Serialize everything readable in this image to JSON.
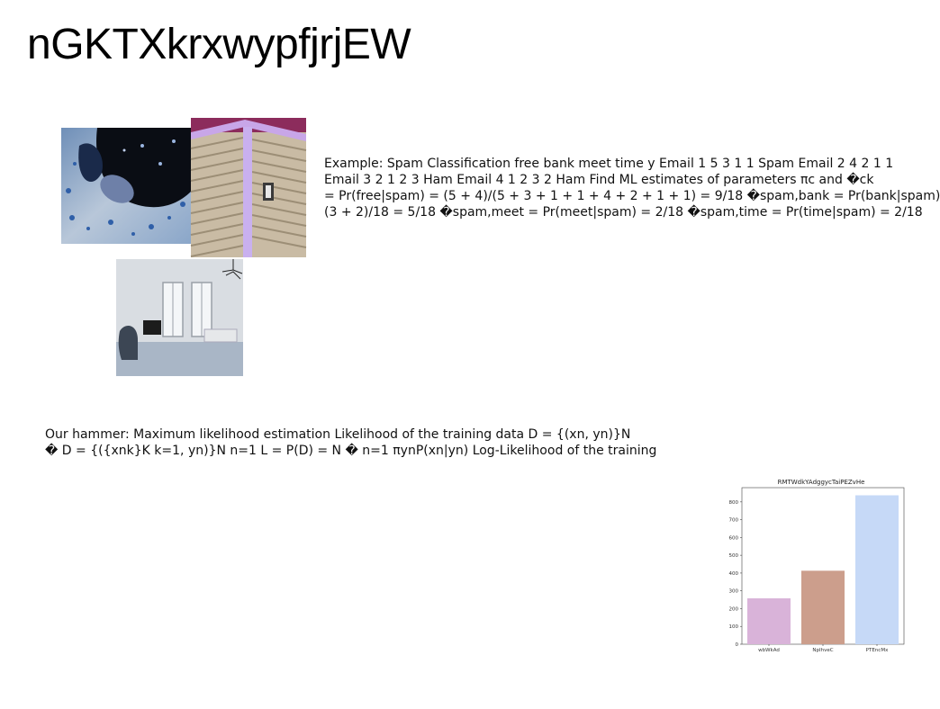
{
  "page": {
    "title": "nGKTXkrxwypfjrjEW"
  },
  "paragraphs": {
    "spam": {
      "lines": [
        "Example: Spam Classification free bank meet time y Email 1 5 3 1 1 Spam Email 2 4 2 1 1",
        "Email 3 2 1 2 3 Ham Email 4 1 2 3 2 Ham Find ML estimates of parameters πc and �ck",
        "= Pr(free|spam) = (5 + 4)/(5 + 3 + 1 + 1 + 4 + 2 + 1 + 1) = 9/18 �spam,bank = Pr(bank|spam)",
        "(3 + 2)/18 = 5/18 �spam,meet = Pr(meet|spam) = 2/18 �spam,time = Pr(time|spam) = 2/18"
      ]
    },
    "hammer": {
      "lines": [
        "Our hammer: Maximum likelihood estimation Likelihood of the training data D = {(xn, yn)}N",
        "� D = {({xnk}K k=1, yn)}N n=1 L = P(D) = N � n=1 πynP(xn|yn) Log-Likelihood of the training"
      ]
    }
  },
  "images": {
    "photo1": {
      "icon": "blue-confetti-portrait-photo"
    },
    "photo2": {
      "icon": "building-siding-corner-photo"
    },
    "photo3": {
      "icon": "white-room-interior-photo"
    }
  },
  "chart_data": {
    "type": "bar",
    "title": "RMTWdkYAdggycTaiPEZvHe",
    "categories": [
      "wbWkAd",
      "NpIhveC",
      "PTEncMx"
    ],
    "values": [
      258,
      413,
      837
    ],
    "colors": [
      "#d9b3d9",
      "#cc9e8c",
      "#c6d9f7"
    ],
    "ylim": [
      0,
      880
    ],
    "yticks": [
      0,
      100,
      200,
      300,
      400,
      500,
      600,
      700,
      800
    ],
    "grid": false
  }
}
